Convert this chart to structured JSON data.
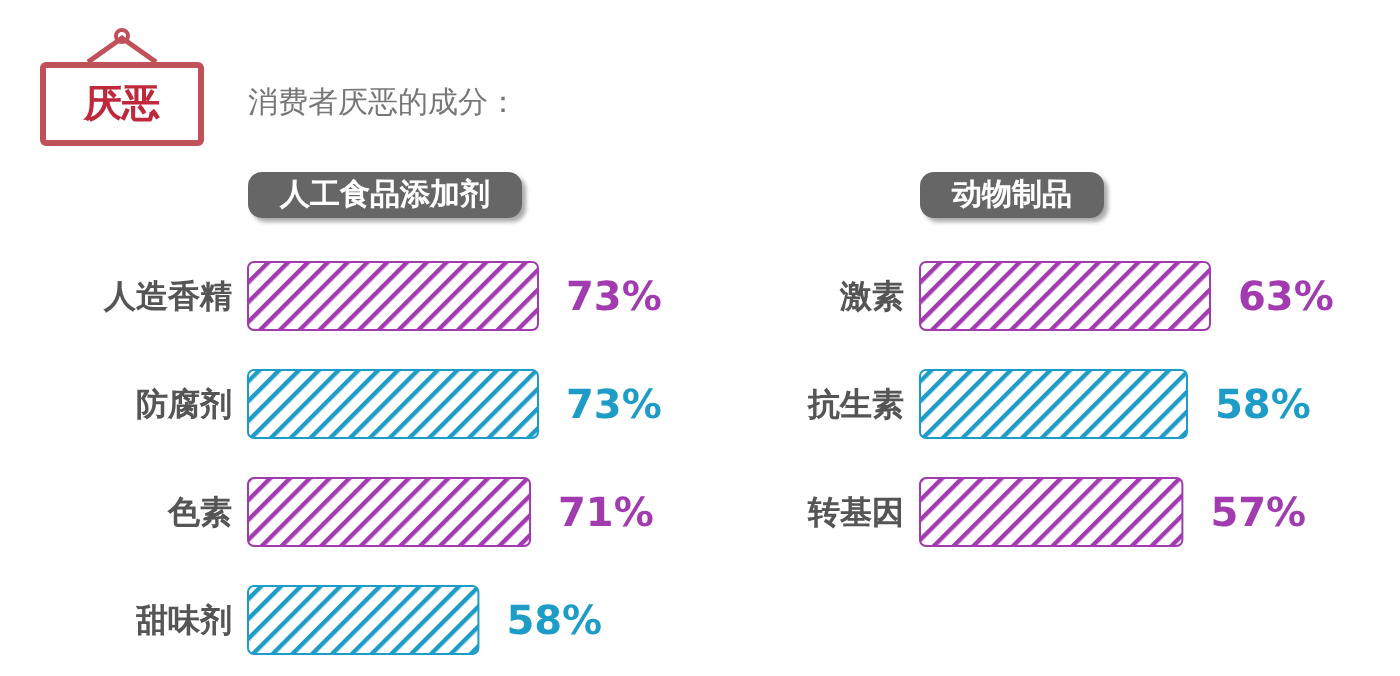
{
  "chart_data": [
    {
      "type": "bar",
      "orientation": "horizontal",
      "title": "人工食品添加剂",
      "annotations": [
        "厌恶",
        "消费者厌恶的成分："
      ],
      "categories": [
        "人造香精",
        "防腐剂",
        "色素",
        "甜味剂"
      ],
      "values": [
        73,
        73,
        71,
        58
      ],
      "colors": [
        "#a23ab0",
        "#1e9cc8",
        "#a23ab0",
        "#1e9cc8"
      ],
      "value_labels": [
        "73%",
        "73%",
        "71%",
        "58%"
      ],
      "grid": false,
      "legend": false
    },
    {
      "type": "bar",
      "orientation": "horizontal",
      "title": "动物制品",
      "categories": [
        "激素",
        "抗生素",
        "转基因"
      ],
      "values": [
        63,
        58,
        57
      ],
      "colors": [
        "#a23ab0",
        "#1e9cc8",
        "#a23ab0"
      ],
      "value_labels": [
        "63%",
        "58%",
        "57%"
      ],
      "grid": false,
      "legend": false
    }
  ]
}
